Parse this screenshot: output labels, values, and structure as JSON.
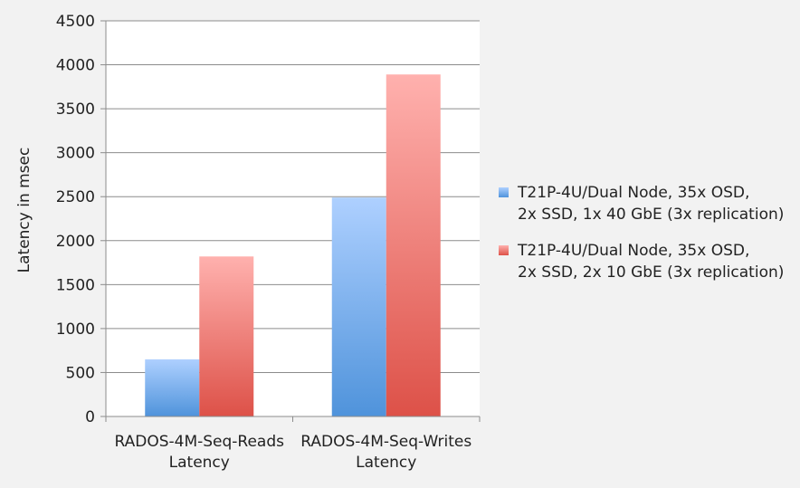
{
  "chart_data": {
    "type": "bar",
    "title": "",
    "ylabel": "Latency in msec",
    "xlabel": "",
    "ylim": [
      0,
      4500
    ],
    "yticks": [
      0,
      500,
      1000,
      1500,
      2000,
      2500,
      3000,
      3500,
      4000,
      4500
    ],
    "grid": true,
    "legend_position": "right",
    "categories": [
      [
        "RADOS-4M-Seq-Reads",
        "Latency"
      ],
      [
        "RADOS-4M-Seq-Writes",
        "Latency"
      ]
    ],
    "series": [
      {
        "name": [
          "T21P-4U/Dual Node, 35x OSD,",
          "2x SSD, 1x 40 GbE (3x replication)"
        ],
        "color_top": "#aed0ff",
        "color_bottom": "#4f93db",
        "values": [
          650,
          2490
        ]
      },
      {
        "name": [
          "T21P-4U/Dual Node, 35x OSD,",
          "2x SSD, 2x 10 GbE (3x replication)"
        ],
        "color_top": "#ffb1ae",
        "color_bottom": "#dd5148",
        "values": [
          1820,
          3890
        ]
      }
    ]
  }
}
